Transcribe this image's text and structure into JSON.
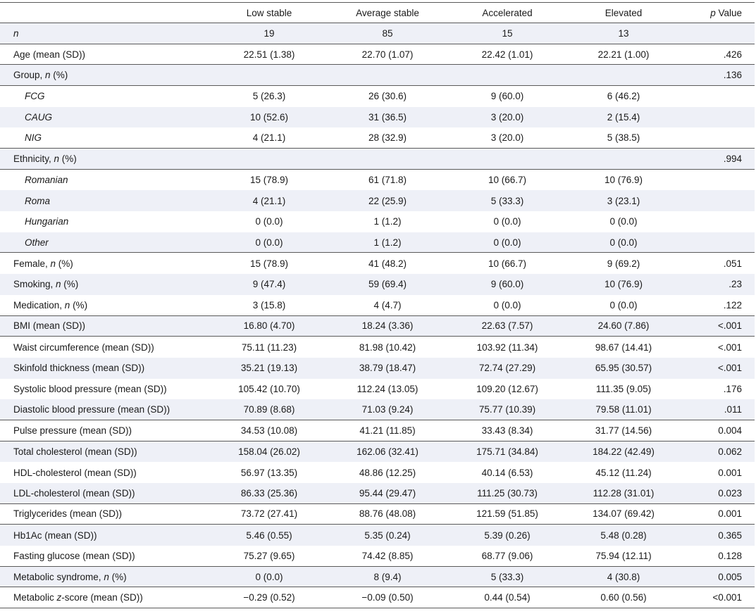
{
  "header": {
    "columns": [
      "Low stable",
      "Average stable",
      "Accelerated",
      "Elevated"
    ],
    "p_italic": "p",
    "p_rest": " Value"
  },
  "rows": [
    {
      "prefix": "",
      "italic": "n",
      "suffix": "",
      "values": [
        "19",
        "85",
        "15",
        "13"
      ],
      "p": "",
      "indent": false,
      "ruled": true
    },
    {
      "prefix": "Age (mean (SD))",
      "italic": "",
      "suffix": "",
      "values": [
        "22.51 (1.38)",
        "22.70 (1.07)",
        "22.42 (1.01)",
        "22.21 (1.00)"
      ],
      "p": ".426",
      "indent": false,
      "ruled": true
    },
    {
      "prefix": "Group, ",
      "italic": "n",
      "suffix": " (%)",
      "values": [
        "",
        "",
        "",
        ""
      ],
      "p": ".136",
      "indent": false,
      "ruled": true
    },
    {
      "prefix": "",
      "italic": "FCG",
      "suffix": "",
      "values": [
        "5 (26.3)",
        "26 (30.6)",
        "9 (60.0)",
        "6 (46.2)"
      ],
      "p": "",
      "indent": true,
      "ruled": false
    },
    {
      "prefix": "",
      "italic": "CAUG",
      "suffix": "",
      "values": [
        "10 (52.6)",
        "31 (36.5)",
        "3 (20.0)",
        "2 (15.4)"
      ],
      "p": "",
      "indent": true,
      "ruled": false
    },
    {
      "prefix": "",
      "italic": "NIG",
      "suffix": "",
      "values": [
        "4 (21.1)",
        "28 (32.9)",
        "3 (20.0)",
        "5 (38.5)"
      ],
      "p": "",
      "indent": true,
      "ruled": true
    },
    {
      "prefix": "Ethnicity, ",
      "italic": "n",
      "suffix": " (%)",
      "values": [
        "",
        "",
        "",
        ""
      ],
      "p": ".994",
      "indent": false,
      "ruled": true
    },
    {
      "prefix": "",
      "italic": "Romanian",
      "suffix": "",
      "values": [
        "15 (78.9)",
        "61 (71.8)",
        "10 (66.7)",
        "10 (76.9)"
      ],
      "p": "",
      "indent": true,
      "ruled": false
    },
    {
      "prefix": "",
      "italic": "Roma",
      "suffix": "",
      "values": [
        "4 (21.1)",
        "22 (25.9)",
        "5 (33.3)",
        "3 (23.1)"
      ],
      "p": "",
      "indent": true,
      "ruled": false
    },
    {
      "prefix": "",
      "italic": "Hungarian",
      "suffix": "",
      "values": [
        "0 (0.0)",
        "1 (1.2)",
        "0 (0.0)",
        "0 (0.0)"
      ],
      "p": "",
      "indent": true,
      "ruled": false
    },
    {
      "prefix": "",
      "italic": "Other",
      "suffix": "",
      "values": [
        "0 (0.0)",
        "1 (1.2)",
        "0 (0.0)",
        "0 (0.0)"
      ],
      "p": "",
      "indent": true,
      "ruled": true
    },
    {
      "prefix": "Female, ",
      "italic": "n",
      "suffix": " (%)",
      "values": [
        "15 (78.9)",
        "41 (48.2)",
        "10 (66.7)",
        "9 (69.2)"
      ],
      "p": ".051",
      "indent": false,
      "ruled": false
    },
    {
      "prefix": "Smoking, ",
      "italic": "n",
      "suffix": " (%)",
      "values": [
        "9 (47.4)",
        "59 (69.4)",
        "9 (60.0)",
        "10 (76.9)"
      ],
      "p": ".23",
      "indent": false,
      "ruled": false
    },
    {
      "prefix": "Medication, ",
      "italic": "n",
      "suffix": " (%)",
      "values": [
        "3 (15.8)",
        "4 (4.7)",
        "0 (0.0)",
        "0 (0.0)"
      ],
      "p": ".122",
      "indent": false,
      "ruled": true
    },
    {
      "prefix": "BMI (mean (SD))",
      "italic": "",
      "suffix": "",
      "values": [
        "16.80 (4.70)",
        "18.24 (3.36)",
        "22.63 (7.57)",
        "24.60 (7.86)"
      ],
      "p": "<.001",
      "indent": false,
      "ruled": true
    },
    {
      "prefix": "Waist circumference (mean (SD))",
      "italic": "",
      "suffix": "",
      "values": [
        "75.11 (11.23)",
        "81.98 (10.42)",
        "103.92 (11.34)",
        "98.67 (14.41)"
      ],
      "p": "<.001",
      "indent": false,
      "ruled": false
    },
    {
      "prefix": "Skinfold thickness (mean (SD))",
      "italic": "",
      "suffix": "",
      "values": [
        "35.21 (19.13)",
        "38.79 (18.47)",
        "72.74 (27.29)",
        "65.95 (30.57)"
      ],
      "p": "<.001",
      "indent": false,
      "ruled": false
    },
    {
      "prefix": "Systolic blood pressure (mean (SD))",
      "italic": "",
      "suffix": "",
      "values": [
        "105.42 (10.70)",
        "112.24 (13.05)",
        "109.20 (12.67)",
        "111.35 (9.05)"
      ],
      "p": ".176",
      "indent": false,
      "ruled": false
    },
    {
      "prefix": "Diastolic blood pressure (mean (SD))",
      "italic": "",
      "suffix": "",
      "values": [
        "70.89 (8.68)",
        "71.03 (9.24)",
        "75.77 (10.39)",
        "79.58 (11.01)"
      ],
      "p": ".011",
      "indent": false,
      "ruled": true
    },
    {
      "prefix": "Pulse pressure (mean (SD))",
      "italic": "",
      "suffix": "",
      "values": [
        "34.53 (10.08)",
        "41.21 (11.85)",
        "33.43 (8.34)",
        "31.77 (14.56)"
      ],
      "p": "0.004",
      "indent": false,
      "ruled": true
    },
    {
      "prefix": "Total cholesterol (mean (SD))",
      "italic": "",
      "suffix": "",
      "values": [
        "158.04 (26.02)",
        "162.06 (32.41)",
        "175.71 (34.84)",
        "184.22 (42.49)"
      ],
      "p": "0.062",
      "indent": false,
      "ruled": false
    },
    {
      "prefix": "HDL-cholesterol (mean (SD))",
      "italic": "",
      "suffix": "",
      "values": [
        "56.97 (13.35)",
        "48.86 (12.25)",
        "40.14 (6.53)",
        "45.12 (11.24)"
      ],
      "p": "0.001",
      "indent": false,
      "ruled": false
    },
    {
      "prefix": "LDL-cholesterol (mean (SD))",
      "italic": "",
      "suffix": "",
      "values": [
        "86.33 (25.36)",
        "95.44 (29.47)",
        "111.25 (30.73)",
        "112.28 (31.01)"
      ],
      "p": "0.023",
      "indent": false,
      "ruled": true
    },
    {
      "prefix": "Triglycerides (mean (SD))",
      "italic": "",
      "suffix": "",
      "values": [
        "73.72 (27.41)",
        "88.76 (48.08)",
        "121.59 (51.85)",
        "134.07 (69.42)"
      ],
      "p": "0.001",
      "indent": false,
      "ruled": true
    },
    {
      "prefix": "Hb1Ac (mean (SD))",
      "italic": "",
      "suffix": "",
      "values": [
        "5.46 (0.55)",
        "5.35 (0.24)",
        "5.39 (0.26)",
        "5.48 (0.28)"
      ],
      "p": "0.365",
      "indent": false,
      "ruled": false
    },
    {
      "prefix": "Fasting glucose (mean (SD))",
      "italic": "",
      "suffix": "",
      "values": [
        "75.27 (9.65)",
        "74.42 (8.85)",
        "68.77 (9.06)",
        "75.94 (12.11)"
      ],
      "p": "0.128",
      "indent": false,
      "ruled": true
    },
    {
      "prefix": "Metabolic syndrome, ",
      "italic": "n",
      "suffix": " (%)",
      "values": [
        "0 (0.0)",
        "8 (9.4)",
        "5 (33.3)",
        "4 (30.8)"
      ],
      "p": "0.005",
      "indent": false,
      "ruled": true
    },
    {
      "prefix": "Metabolic ",
      "italic": "z",
      "suffix": "-score (mean (SD))",
      "values": [
        "−0.29 (0.52)",
        "−0.09 (0.50)",
        "0.44 (0.54)",
        "0.60 (0.56)"
      ],
      "p": "<0.001",
      "indent": false,
      "ruled": true
    }
  ]
}
